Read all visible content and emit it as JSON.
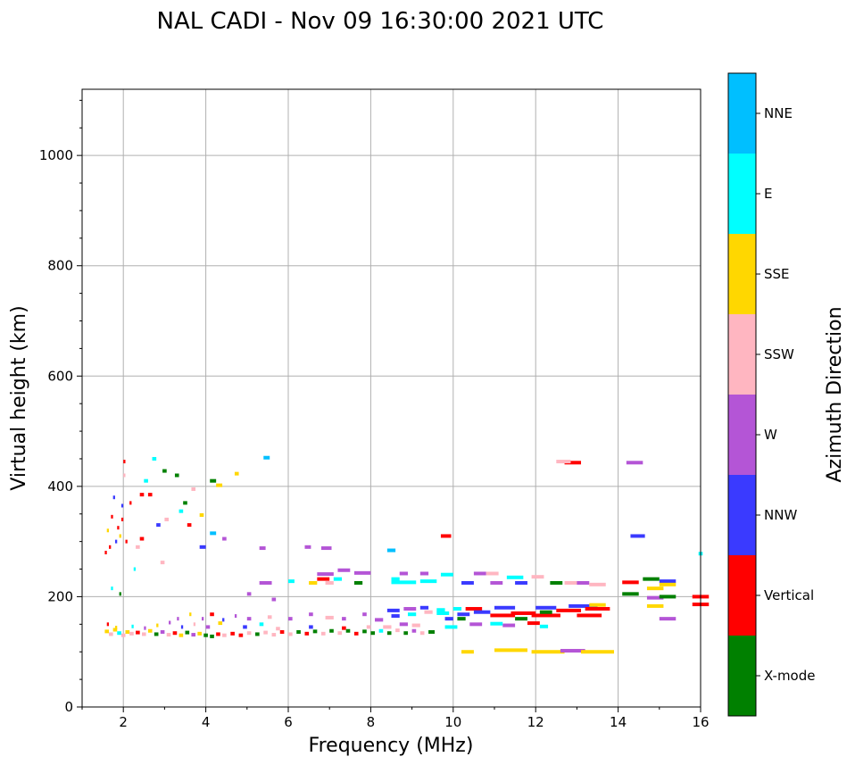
{
  "chart_data": {
    "type": "scatter",
    "title": "NAL CADI - Nov 09 16:30:00 2021 UTC",
    "xlabel": "Frequency (MHz)",
    "ylabel": "Virtual height (km)",
    "xlim": [
      1,
      16
    ],
    "ylim": [
      0,
      1120
    ],
    "xticks": [
      2,
      4,
      6,
      8,
      10,
      12,
      14,
      16
    ],
    "yticks": [
      0,
      200,
      400,
      600,
      800,
      1000
    ],
    "grid": true,
    "colorbar": {
      "label": "Azimuth Direction",
      "categories": [
        "X-mode",
        "Vertical",
        "NNW",
        "W",
        "SSW",
        "SSE",
        "E",
        "NNE"
      ],
      "colors": [
        "#008000",
        "#ff0000",
        "#3a3aff",
        "#b455d6",
        "#ffb6c1",
        "#ffd700",
        "#00ffff",
        "#00bfff"
      ]
    },
    "echoes": [
      {
        "f": 1.55,
        "h": 137,
        "d": 0.1,
        "c": "SSE"
      },
      {
        "f": 1.65,
        "h": 132,
        "d": 0.1,
        "c": "SSW"
      },
      {
        "f": 1.75,
        "h": 140,
        "d": 0.1,
        "c": "SSE"
      },
      {
        "f": 1.85,
        "h": 134,
        "d": 0.1,
        "c": "E"
      },
      {
        "f": 1.95,
        "h": 130,
        "d": 0.1,
        "c": "SSW"
      },
      {
        "f": 2.05,
        "h": 136,
        "d": 0.1,
        "c": "SSE"
      },
      {
        "f": 2.15,
        "h": 133,
        "d": 0.1,
        "c": "SSW"
      },
      {
        "f": 2.3,
        "h": 135,
        "d": 0.1,
        "c": "Vertical"
      },
      {
        "f": 2.45,
        "h": 132,
        "d": 0.1,
        "c": "SSW"
      },
      {
        "f": 2.6,
        "h": 138,
        "d": 0.1,
        "c": "SSE"
      },
      {
        "f": 2.75,
        "h": 132,
        "d": 0.1,
        "c": "X-mode"
      },
      {
        "f": 2.9,
        "h": 136,
        "d": 0.1,
        "c": "W"
      },
      {
        "f": 3.05,
        "h": 131,
        "d": 0.1,
        "c": "SSW"
      },
      {
        "f": 3.2,
        "h": 134,
        "d": 0.1,
        "c": "Vertical"
      },
      {
        "f": 3.35,
        "h": 130,
        "d": 0.1,
        "c": "SSE"
      },
      {
        "f": 3.5,
        "h": 135,
        "d": 0.1,
        "c": "X-mode"
      },
      {
        "f": 3.65,
        "h": 131,
        "d": 0.1,
        "c": "W"
      },
      {
        "f": 3.8,
        "h": 133,
        "d": 0.1,
        "c": "SSE"
      },
      {
        "f": 3.95,
        "h": 130,
        "d": 0.1,
        "c": "X-mode"
      },
      {
        "f": 4.1,
        "h": 128,
        "d": 0.1,
        "c": "X-mode"
      },
      {
        "f": 4.25,
        "h": 132,
        "d": 0.1,
        "c": "Vertical"
      },
      {
        "f": 4.4,
        "h": 130,
        "d": 0.1,
        "c": "SSW"
      },
      {
        "f": 4.6,
        "h": 133,
        "d": 0.1,
        "c": "Vertical"
      },
      {
        "f": 4.8,
        "h": 130,
        "d": 0.1,
        "c": "Vertical"
      },
      {
        "f": 5.0,
        "h": 134,
        "d": 0.1,
        "c": "SSW"
      },
      {
        "f": 5.2,
        "h": 132,
        "d": 0.1,
        "c": "X-mode"
      },
      {
        "f": 5.4,
        "h": 135,
        "d": 0.1,
        "c": "SSW"
      },
      {
        "f": 5.6,
        "h": 131,
        "d": 0.1,
        "c": "SSW"
      },
      {
        "f": 5.8,
        "h": 136,
        "d": 0.1,
        "c": "Vertical"
      },
      {
        "f": 6.0,
        "h": 132,
        "d": 0.1,
        "c": "SSW"
      },
      {
        "f": 6.2,
        "h": 136,
        "d": 0.1,
        "c": "X-mode"
      },
      {
        "f": 6.4,
        "h": 133,
        "d": 0.1,
        "c": "Vertical"
      },
      {
        "f": 6.6,
        "h": 137,
        "d": 0.1,
        "c": "X-mode"
      },
      {
        "f": 6.8,
        "h": 133,
        "d": 0.1,
        "c": "SSW"
      },
      {
        "f": 7.0,
        "h": 138,
        "d": 0.1,
        "c": "X-mode"
      },
      {
        "f": 7.2,
        "h": 134,
        "d": 0.1,
        "c": "SSW"
      },
      {
        "f": 7.4,
        "h": 138,
        "d": 0.1,
        "c": "X-mode"
      },
      {
        "f": 7.6,
        "h": 133,
        "d": 0.1,
        "c": "Vertical"
      },
      {
        "f": 7.8,
        "h": 137,
        "d": 0.1,
        "c": "X-mode"
      },
      {
        "f": 8.0,
        "h": 134,
        "d": 0.1,
        "c": "X-mode"
      },
      {
        "f": 8.2,
        "h": 138,
        "d": 0.1,
        "c": "E"
      },
      {
        "f": 8.4,
        "h": 134,
        "d": 0.1,
        "c": "X-mode"
      },
      {
        "f": 8.6,
        "h": 139,
        "d": 0.1,
        "c": "SSW"
      },
      {
        "f": 8.8,
        "h": 134,
        "d": 0.1,
        "c": "X-mode"
      },
      {
        "f": 9.0,
        "h": 138,
        "d": 0.1,
        "c": "W"
      },
      {
        "f": 9.2,
        "h": 134,
        "d": 0.1,
        "c": "SSW"
      },
      {
        "f": 9.4,
        "h": 136,
        "d": 0.15,
        "c": "X-mode"
      },
      {
        "f": 1.6,
        "h": 150,
        "d": 0.05,
        "c": "Vertical"
      },
      {
        "f": 1.8,
        "h": 144,
        "d": 0.05,
        "c": "SSE"
      },
      {
        "f": 2.2,
        "h": 146,
        "d": 0.05,
        "c": "E"
      },
      {
        "f": 2.5,
        "h": 143,
        "d": 0.05,
        "c": "W"
      },
      {
        "f": 2.8,
        "h": 148,
        "d": 0.05,
        "c": "SSE"
      },
      {
        "f": 3.1,
        "h": 153,
        "d": 0.05,
        "c": "W"
      },
      {
        "f": 3.4,
        "h": 145,
        "d": 0.05,
        "c": "NNW"
      },
      {
        "f": 3.7,
        "h": 150,
        "d": 0.05,
        "c": "SSW"
      },
      {
        "f": 4.0,
        "h": 145,
        "d": 0.1,
        "c": "W"
      },
      {
        "f": 4.3,
        "h": 152,
        "d": 0.1,
        "c": "SSE"
      },
      {
        "f": 4.9,
        "h": 145,
        "d": 0.1,
        "c": "NNW"
      },
      {
        "f": 5.3,
        "h": 150,
        "d": 0.1,
        "c": "E"
      },
      {
        "f": 5.7,
        "h": 142,
        "d": 0.1,
        "c": "SSW"
      },
      {
        "f": 6.5,
        "h": 145,
        "d": 0.1,
        "c": "NNW"
      },
      {
        "f": 7.3,
        "h": 143,
        "d": 0.1,
        "c": "Vertical"
      },
      {
        "f": 7.9,
        "h": 145,
        "d": 0.1,
        "c": "SSW"
      },
      {
        "f": 8.3,
        "h": 145,
        "d": 0.2,
        "c": "SSW"
      },
      {
        "f": 8.7,
        "h": 150,
        "d": 0.2,
        "c": "W"
      },
      {
        "f": 9.0,
        "h": 148,
        "d": 0.2,
        "c": "SSW"
      },
      {
        "f": 3.3,
        "h": 160,
        "d": 0.05,
        "c": "W"
      },
      {
        "f": 3.6,
        "h": 168,
        "d": 0.05,
        "c": "SSE"
      },
      {
        "f": 3.9,
        "h": 160,
        "d": 0.05,
        "c": "W"
      },
      {
        "f": 4.1,
        "h": 168,
        "d": 0.1,
        "c": "Vertical"
      },
      {
        "f": 4.4,
        "h": 158,
        "d": 0.05,
        "c": "NNW"
      },
      {
        "f": 4.7,
        "h": 165,
        "d": 0.05,
        "c": "W"
      },
      {
        "f": 5.0,
        "h": 160,
        "d": 0.1,
        "c": "W"
      },
      {
        "f": 5.5,
        "h": 163,
        "d": 0.1,
        "c": "SSW"
      },
      {
        "f": 6.0,
        "h": 160,
        "d": 0.1,
        "c": "W"
      },
      {
        "f": 6.5,
        "h": 168,
        "d": 0.1,
        "c": "W"
      },
      {
        "f": 6.9,
        "h": 162,
        "d": 0.2,
        "c": "SSW"
      },
      {
        "f": 7.3,
        "h": 160,
        "d": 0.1,
        "c": "W"
      },
      {
        "f": 7.8,
        "h": 168,
        "d": 0.1,
        "c": "W"
      },
      {
        "f": 8.1,
        "h": 158,
        "d": 0.2,
        "c": "W"
      },
      {
        "f": 8.5,
        "h": 165,
        "d": 0.2,
        "c": "NNW"
      },
      {
        "f": 8.9,
        "h": 168,
        "d": 0.2,
        "c": "E"
      },
      {
        "f": 9.3,
        "h": 172,
        "d": 0.2,
        "c": "SSW"
      },
      {
        "f": 9.6,
        "h": 170,
        "d": 0.3,
        "c": "E"
      },
      {
        "f": 8.4,
        "h": 175,
        "d": 0.3,
        "c": "NNW"
      },
      {
        "f": 8.8,
        "h": 178,
        "d": 0.3,
        "c": "W"
      },
      {
        "f": 9.2,
        "h": 180,
        "d": 0.2,
        "c": "NNW"
      },
      {
        "f": 9.6,
        "h": 176,
        "d": 0.2,
        "c": "E"
      },
      {
        "f": 10.1,
        "h": 168,
        "d": 0.3,
        "c": "NNW"
      },
      {
        "f": 10.1,
        "h": 160,
        "d": 0.2,
        "c": "X-mode"
      },
      {
        "f": 10.3,
        "h": 178,
        "d": 0.4,
        "c": "Vertical"
      },
      {
        "f": 10.5,
        "h": 172,
        "d": 0.4,
        "c": "NNW"
      },
      {
        "f": 10.9,
        "h": 166,
        "d": 0.6,
        "c": "Vertical"
      },
      {
        "f": 11.0,
        "h": 180,
        "d": 0.5,
        "c": "NNW"
      },
      {
        "f": 11.4,
        "h": 170,
        "d": 0.6,
        "c": "Vertical"
      },
      {
        "f": 11.5,
        "h": 160,
        "d": 0.3,
        "c": "X-mode"
      },
      {
        "f": 11.9,
        "h": 166,
        "d": 0.7,
        "c": "Vertical"
      },
      {
        "f": 12.0,
        "h": 180,
        "d": 0.5,
        "c": "NNW"
      },
      {
        "f": 12.1,
        "h": 172,
        "d": 0.3,
        "c": "X-mode"
      },
      {
        "f": 12.5,
        "h": 175,
        "d": 0.6,
        "c": "Vertical"
      },
      {
        "f": 12.8,
        "h": 183,
        "d": 0.7,
        "c": "NNW"
      },
      {
        "f": 13.0,
        "h": 166,
        "d": 0.6,
        "c": "Vertical"
      },
      {
        "f": 13.2,
        "h": 178,
        "d": 0.6,
        "c": "Vertical"
      },
      {
        "f": 13.3,
        "h": 185,
        "d": 0.4,
        "c": "SSE"
      },
      {
        "f": 10.4,
        "h": 150,
        "d": 0.3,
        "c": "W"
      },
      {
        "f": 11.2,
        "h": 148,
        "d": 0.3,
        "c": "W"
      },
      {
        "f": 11.8,
        "h": 152,
        "d": 0.3,
        "c": "Vertical"
      },
      {
        "f": 12.1,
        "h": 146,
        "d": 0.2,
        "c": "E"
      },
      {
        "f": 9.8,
        "h": 145,
        "d": 0.3,
        "c": "E"
      },
      {
        "f": 10.9,
        "h": 151,
        "d": 0.3,
        "c": "E"
      },
      {
        "f": 10.2,
        "h": 100,
        "d": 0.3,
        "c": "SSE"
      },
      {
        "f": 11.0,
        "h": 103,
        "d": 0.8,
        "c": "SSE"
      },
      {
        "f": 11.9,
        "h": 100,
        "d": 0.8,
        "c": "SSE"
      },
      {
        "f": 12.6,
        "h": 102,
        "d": 0.6,
        "c": "W"
      },
      {
        "f": 13.1,
        "h": 100,
        "d": 0.8,
        "c": "SSE"
      },
      {
        "f": 6.5,
        "h": 225,
        "d": 0.2,
        "c": "SSE"
      },
      {
        "f": 6.7,
        "h": 232,
        "d": 0.3,
        "c": "Vertical"
      },
      {
        "f": 6.9,
        "h": 225,
        "d": 0.2,
        "c": "SSW"
      },
      {
        "f": 7.1,
        "h": 232,
        "d": 0.2,
        "c": "E"
      },
      {
        "f": 7.6,
        "h": 225,
        "d": 0.2,
        "c": "X-mode"
      },
      {
        "f": 7.6,
        "h": 243,
        "d": 0.4,
        "c": "W"
      },
      {
        "f": 6.7,
        "h": 241,
        "d": 0.4,
        "c": "W"
      },
      {
        "f": 7.2,
        "h": 248,
        "d": 0.3,
        "c": "W"
      },
      {
        "f": 8.5,
        "h": 226,
        "d": 0.6,
        "c": "E"
      },
      {
        "f": 8.5,
        "h": 232,
        "d": 0.2,
        "c": "E"
      },
      {
        "f": 9.2,
        "h": 228,
        "d": 0.4,
        "c": "E"
      },
      {
        "f": 8.7,
        "h": 242,
        "d": 0.2,
        "c": "W"
      },
      {
        "f": 9.2,
        "h": 242,
        "d": 0.2,
        "c": "W"
      },
      {
        "f": 9.7,
        "h": 240,
        "d": 0.3,
        "c": "E"
      },
      {
        "f": 10.2,
        "h": 225,
        "d": 0.3,
        "c": "NNW"
      },
      {
        "f": 10.5,
        "h": 242,
        "d": 0.3,
        "c": "W"
      },
      {
        "f": 10.8,
        "h": 242,
        "d": 0.3,
        "c": "SSW"
      },
      {
        "f": 10.9,
        "h": 225,
        "d": 0.3,
        "c": "W"
      },
      {
        "f": 11.3,
        "h": 235,
        "d": 0.4,
        "c": "E"
      },
      {
        "f": 11.5,
        "h": 225,
        "d": 0.3,
        "c": "NNW"
      },
      {
        "f": 11.9,
        "h": 236,
        "d": 0.3,
        "c": "SSW"
      },
      {
        "f": 12.35,
        "h": 225,
        "d": 0.3,
        "c": "X-mode"
      },
      {
        "f": 12.7,
        "h": 225,
        "d": 0.4,
        "c": "SSW"
      },
      {
        "f": 13.0,
        "h": 225,
        "d": 0.3,
        "c": "W"
      },
      {
        "f": 13.3,
        "h": 222,
        "d": 0.4,
        "c": "SSW"
      },
      {
        "f": 9.8,
        "h": 160,
        "d": 0.2,
        "c": "NNW"
      },
      {
        "f": 10.0,
        "h": 178,
        "d": 0.2,
        "c": "E"
      },
      {
        "f": 14.1,
        "h": 205,
        "d": 0.4,
        "c": "X-mode"
      },
      {
        "f": 14.1,
        "h": 226,
        "d": 0.4,
        "c": "Vertical"
      },
      {
        "f": 14.6,
        "h": 232,
        "d": 0.4,
        "c": "X-mode"
      },
      {
        "f": 14.7,
        "h": 215,
        "d": 0.4,
        "c": "SSE"
      },
      {
        "f": 14.7,
        "h": 198,
        "d": 0.4,
        "c": "W"
      },
      {
        "f": 14.7,
        "h": 183,
        "d": 0.4,
        "c": "SSE"
      },
      {
        "f": 15.0,
        "h": 228,
        "d": 0.4,
        "c": "NNW"
      },
      {
        "f": 15.0,
        "h": 222,
        "d": 0.4,
        "c": "SSE"
      },
      {
        "f": 15.0,
        "h": 200,
        "d": 0.4,
        "c": "X-mode"
      },
      {
        "f": 15.0,
        "h": 160,
        "d": 0.4,
        "c": "W"
      },
      {
        "f": 15.8,
        "h": 200,
        "d": 0.4,
        "c": "Vertical"
      },
      {
        "f": 15.8,
        "h": 186,
        "d": 0.4,
        "c": "Vertical"
      },
      {
        "f": 12.7,
        "h": 443,
        "d": 0.4,
        "c": "Vertical"
      },
      {
        "f": 12.5,
        "h": 445,
        "d": 0.35,
        "c": "SSW"
      },
      {
        "f": 14.2,
        "h": 443,
        "d": 0.4,
        "c": "W"
      },
      {
        "f": 14.3,
        "h": 310,
        "d": 0.35,
        "c": "NNW"
      },
      {
        "f": 9.7,
        "h": 310,
        "d": 0.25,
        "c": "Vertical"
      },
      {
        "f": 15.95,
        "h": 278,
        "d": 0.1,
        "c": "E"
      },
      {
        "f": 6.4,
        "h": 290,
        "d": 0.15,
        "c": "W"
      },
      {
        "f": 6.8,
        "h": 288,
        "d": 0.25,
        "c": "W"
      },
      {
        "f": 5.3,
        "h": 288,
        "d": 0.15,
        "c": "W"
      },
      {
        "f": 8.4,
        "h": 284,
        "d": 0.2,
        "c": "NNE"
      },
      {
        "f": 5.4,
        "h": 452,
        "d": 0.15,
        "c": "NNE"
      },
      {
        "f": 4.7,
        "h": 423,
        "d": 0.1,
        "c": "SSE"
      },
      {
        "f": 4.1,
        "h": 410,
        "d": 0.15,
        "c": "X-mode"
      },
      {
        "f": 4.25,
        "h": 402,
        "d": 0.15,
        "c": "SSE"
      },
      {
        "f": 4.1,
        "h": 315,
        "d": 0.15,
        "c": "NNE"
      },
      {
        "f": 4.4,
        "h": 305,
        "d": 0.1,
        "c": "W"
      },
      {
        "f": 3.85,
        "h": 348,
        "d": 0.1,
        "c": "SSE"
      },
      {
        "f": 3.85,
        "h": 290,
        "d": 0.15,
        "c": "NNW"
      },
      {
        "f": 3.65,
        "h": 395,
        "d": 0.1,
        "c": "SSW"
      },
      {
        "f": 3.55,
        "h": 330,
        "d": 0.1,
        "c": "Vertical"
      },
      {
        "f": 3.45,
        "h": 370,
        "d": 0.1,
        "c": "X-mode"
      },
      {
        "f": 3.35,
        "h": 355,
        "d": 0.1,
        "c": "E"
      },
      {
        "f": 3.25,
        "h": 420,
        "d": 0.1,
        "c": "X-mode"
      },
      {
        "f": 3.0,
        "h": 340,
        "d": 0.1,
        "c": "SSW"
      },
      {
        "f": 2.95,
        "h": 428,
        "d": 0.1,
        "c": "X-mode"
      },
      {
        "f": 2.9,
        "h": 262,
        "d": 0.1,
        "c": "SSW"
      },
      {
        "f": 2.8,
        "h": 330,
        "d": 0.1,
        "c": "NNW"
      },
      {
        "f": 2.7,
        "h": 450,
        "d": 0.1,
        "c": "E"
      },
      {
        "f": 2.6,
        "h": 385,
        "d": 0.1,
        "c": "Vertical"
      },
      {
        "f": 2.5,
        "h": 410,
        "d": 0.1,
        "c": "E"
      },
      {
        "f": 2.4,
        "h": 385,
        "d": 0.1,
        "c": "Vertical"
      },
      {
        "f": 2.4,
        "h": 305,
        "d": 0.1,
        "c": "Vertical"
      },
      {
        "f": 2.3,
        "h": 290,
        "d": 0.1,
        "c": "SSW"
      },
      {
        "f": 2.25,
        "h": 250,
        "d": 0.05,
        "c": "E"
      },
      {
        "f": 2.0,
        "h": 445,
        "d": 0.05,
        "c": "Vertical"
      },
      {
        "f": 2.0,
        "h": 420,
        "d": 0.05,
        "c": "SSW"
      },
      {
        "f": 1.95,
        "h": 365,
        "d": 0.05,
        "c": "NNW"
      },
      {
        "f": 1.95,
        "h": 340,
        "d": 0.05,
        "c": "Vertical"
      },
      {
        "f": 1.9,
        "h": 310,
        "d": 0.05,
        "c": "SSE"
      },
      {
        "f": 1.85,
        "h": 325,
        "d": 0.05,
        "c": "Vertical"
      },
      {
        "f": 1.8,
        "h": 300,
        "d": 0.05,
        "c": "NNW"
      },
      {
        "f": 1.75,
        "h": 380,
        "d": 0.05,
        "c": "NNW"
      },
      {
        "f": 1.7,
        "h": 345,
        "d": 0.05,
        "c": "Vertical"
      },
      {
        "f": 1.65,
        "h": 290,
        "d": 0.05,
        "c": "Vertical"
      },
      {
        "f": 1.6,
        "h": 320,
        "d": 0.05,
        "c": "SSE"
      },
      {
        "f": 1.55,
        "h": 280,
        "d": 0.05,
        "c": "Vertical"
      },
      {
        "f": 1.7,
        "h": 215,
        "d": 0.05,
        "c": "E"
      },
      {
        "f": 1.9,
        "h": 205,
        "d": 0.05,
        "c": "X-mode"
      },
      {
        "f": 2.15,
        "h": 370,
        "d": 0.05,
        "c": "Vertical"
      },
      {
        "f": 2.05,
        "h": 300,
        "d": 0.05,
        "c": "Vertical"
      },
      {
        "f": 5.3,
        "h": 225,
        "d": 0.3,
        "c": "W"
      },
      {
        "f": 6.0,
        "h": 228,
        "d": 0.15,
        "c": "E"
      },
      {
        "f": 5.0,
        "h": 205,
        "d": 0.1,
        "c": "W"
      },
      {
        "f": 5.6,
        "h": 195,
        "d": 0.1,
        "c": "W"
      }
    ]
  }
}
